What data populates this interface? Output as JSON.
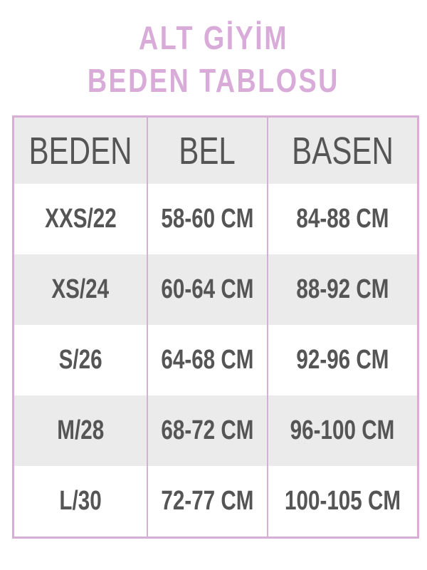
{
  "title": {
    "line1": "ALT GİYİM",
    "line2": "BEDEN TABLOSU"
  },
  "colors": {
    "title": "#d9abd9",
    "border": "#d6aed6",
    "text": "#555555",
    "stripe": "#ebebeb"
  },
  "table": {
    "headers": [
      "BEDEN",
      "BEL",
      "BASEN"
    ],
    "rows": [
      [
        "XXS/22",
        "58-60 CM",
        "84-88 CM"
      ],
      [
        "XS/24",
        "60-64 CM",
        "88-92 CM"
      ],
      [
        "S/26",
        "64-68 CM",
        "92-96 CM"
      ],
      [
        "M/28",
        "68-72 CM",
        "96-100 CM"
      ],
      [
        "L/30",
        "72-77 CM",
        "100-105 CM"
      ]
    ]
  }
}
